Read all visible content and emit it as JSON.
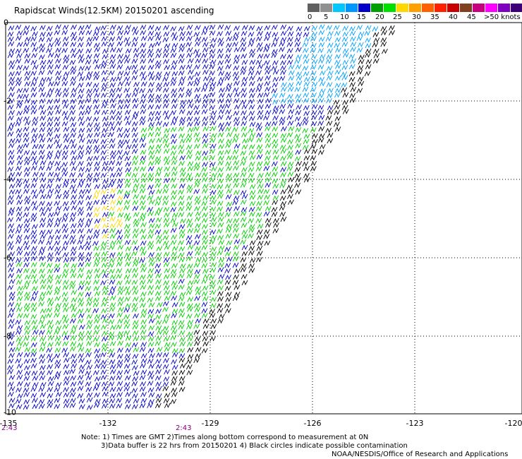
{
  "title": "Rapidscat Winds(12.5KM) 20150201 ascending",
  "legend": {
    "colors": [
      "#606060",
      "#909090",
      "#00c8ff",
      "#0096ff",
      "#0000c8",
      "#00a000",
      "#00e000",
      "#ffd800",
      "#ffa000",
      "#ff6000",
      "#ff2000",
      "#c80000",
      "#804020",
      "#c80080",
      "#ff00ff",
      "#8000c0",
      "#3c0078"
    ],
    "labels": [
      "0",
      "5",
      "10",
      "15",
      "20",
      "25",
      "30",
      "35",
      "40",
      "45",
      ">50 knots"
    ]
  },
  "axes": {
    "x_ticks": [
      "-135",
      "-132",
      "-129",
      "-126",
      "-123",
      "-120"
    ],
    "y_ticks": [
      "0",
      "-2",
      "-4",
      "-6",
      "-8",
      "-10"
    ]
  },
  "times": [
    "2:43",
    "2:43"
  ],
  "notes": {
    "line1": "Note: 1) Times are GMT 2)Times along bottom correspond to measurement at 0N",
    "line2": "3)Data buffer is 22 hrs from 20150201 4) Black circles indicate possible contamination",
    "line3": "NOAA/NESDIS/Office of Research and Applications"
  },
  "wind_colors": {
    "blue": "#0000c8",
    "cyan": "#00a0ff",
    "green": "#00d000",
    "yellow": "#ffd800",
    "black": "#000000"
  }
}
